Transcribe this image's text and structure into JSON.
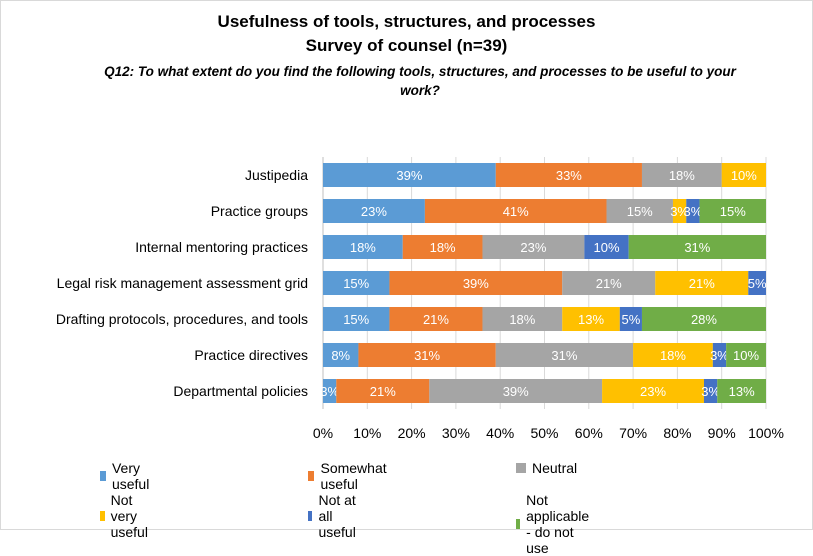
{
  "title_line1": "Usefulness of tools, structures, and processes",
  "title_line2": "Survey of counsel (n=39)",
  "subtitle": "Q12: To what extent do you find the following tools, structures, and processes to be useful to your work?",
  "chart_data": {
    "type": "bar",
    "orientation": "horizontal",
    "stacked": "percent",
    "title": "Usefulness of tools, structures, and processes — Survey of counsel (n=39)",
    "categories": [
      "Justipedia",
      "Practice groups",
      "Internal mentoring practices",
      "Legal risk management assessment grid",
      "Drafting protocols, procedures, and tools",
      "Practice directives",
      "Departmental policies"
    ],
    "series": [
      {
        "name": "Very useful",
        "color": "#5b9bd5",
        "values": [
          39,
          23,
          18,
          15,
          15,
          8,
          3
        ],
        "labels": [
          "39%",
          "23%",
          "18%",
          "15%",
          "15%",
          "8%",
          "3%"
        ]
      },
      {
        "name": "Somewhat useful",
        "color": "#ed7d31",
        "values": [
          33,
          41,
          18,
          39,
          21,
          31,
          21
        ],
        "labels": [
          "33%",
          "41%",
          "18%",
          "39%",
          "21%",
          "31%",
          "21%"
        ]
      },
      {
        "name": "Neutral",
        "color": "#a5a5a5",
        "values": [
          18,
          15,
          23,
          21,
          18,
          31,
          39
        ],
        "labels": [
          "18%",
          "15%",
          "23%",
          "21%",
          "18%",
          "31%",
          "39%"
        ]
      },
      {
        "name": "Not very useful",
        "color": "#ffc000",
        "values": [
          10,
          3,
          0,
          21,
          13,
          18,
          23
        ],
        "labels": [
          "10%",
          "3%",
          "",
          "21%",
          "13%",
          "18%",
          "23%"
        ]
      },
      {
        "name": "Not at all useful",
        "color": "#4472c4",
        "values": [
          0,
          3,
          10,
          5,
          5,
          3,
          3
        ],
        "labels": [
          "",
          "3%",
          "10%",
          "5%",
          "5%",
          "3%",
          "3%"
        ]
      },
      {
        "name": "Not applicable - do not use",
        "color": "#70ad47",
        "values": [
          0,
          15,
          31,
          0,
          28,
          10,
          13
        ],
        "labels": [
          "",
          "15%",
          "31%",
          "",
          "28%",
          "10%",
          "13%"
        ]
      }
    ],
    "xlim": [
      0,
      100
    ],
    "xticks": [
      "0%",
      "10%",
      "20%",
      "30%",
      "40%",
      "50%",
      "60%",
      "70%",
      "80%",
      "90%",
      "100%"
    ],
    "grid": true,
    "legend_position": "bottom"
  }
}
